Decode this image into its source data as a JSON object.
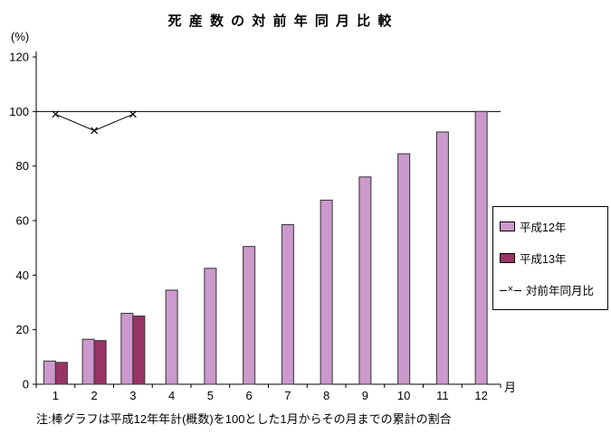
{
  "title": "死 産 数 の 対 前 年 同 月 比 較",
  "y_axis_unit": "(%)",
  "x_axis_unit": "月",
  "note": "注:棒グラフは平成12年年計(概数)を100とした1月からその月までの累計の割合",
  "colors": {
    "heisei12_bar": "#CC99CC",
    "heisei13_bar": "#993366",
    "line": "#000000",
    "bar_outline": "#333333"
  },
  "legend": [
    {
      "key": "heisei12",
      "label": "平成12年",
      "type": "bar",
      "color": "#CC99CC"
    },
    {
      "key": "heisei13",
      "label": "平成13年",
      "type": "bar",
      "color": "#993366"
    },
    {
      "key": "yoy-ratio",
      "label": "対前年同月比",
      "type": "line",
      "color": "#000000"
    }
  ],
  "chart_data": {
    "type": "bar",
    "title": "死産数の対前年同月比較",
    "xlabel": "月",
    "ylabel": "(%)",
    "categories": [
      1,
      2,
      3,
      4,
      5,
      6,
      7,
      8,
      9,
      10,
      11,
      12
    ],
    "series": [
      {
        "key": "heisei12",
        "name": "平成12年",
        "type": "bar",
        "color": "#CC99CC",
        "values": [
          8.5,
          16.5,
          26,
          34.5,
          42.5,
          50.5,
          58.5,
          67.5,
          76,
          84.5,
          92.5,
          100
        ]
      },
      {
        "key": "heisei13",
        "name": "平成13年",
        "type": "bar",
        "color": "#993366",
        "values": [
          8,
          16,
          25,
          null,
          null,
          null,
          null,
          null,
          null,
          null,
          null,
          null
        ]
      },
      {
        "key": "yoy-ratio",
        "name": "対前年同月比",
        "type": "line",
        "color": "#000000",
        "marker": "x",
        "values": [
          99,
          93,
          99,
          null,
          null,
          null,
          null,
          null,
          null,
          null,
          null,
          null
        ]
      }
    ],
    "ylim": [
      0,
      120
    ],
    "yticks": [
      0,
      20,
      40,
      60,
      80,
      100,
      120
    ],
    "reference_line": 100,
    "grid": false,
    "legend_position": "right"
  }
}
